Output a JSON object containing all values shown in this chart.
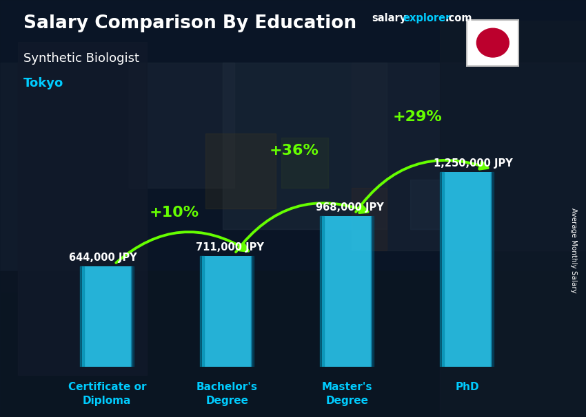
{
  "title": "Salary Comparison By Education",
  "subtitle": "Synthetic Biologist",
  "city": "Tokyo",
  "ylabel": "Average Monthly Salary",
  "categories": [
    "Certificate or\nDiploma",
    "Bachelor's\nDegree",
    "Master's\nDegree",
    "PhD"
  ],
  "values": [
    644000,
    711000,
    968000,
    1250000
  ],
  "value_labels": [
    "644,000 JPY",
    "711,000 JPY",
    "968,000 JPY",
    "1,250,000 JPY"
  ],
  "pct_labels": [
    "+10%",
    "+36%",
    "+29%"
  ],
  "bar_color": "#29C8F0",
  "bar_edge_color": "#1AA8D0",
  "pct_color": "#66FF00",
  "title_color": "#FFFFFF",
  "subtitle_color": "#FFFFFF",
  "city_color": "#00CCFF",
  "label_color": "#FFFFFF",
  "xtick_color": "#00CCFF",
  "bg_overlay": "#0A1628",
  "figsize": [
    8.5,
    6.06
  ],
  "dpi": 100,
  "ylim_max": 1550000
}
